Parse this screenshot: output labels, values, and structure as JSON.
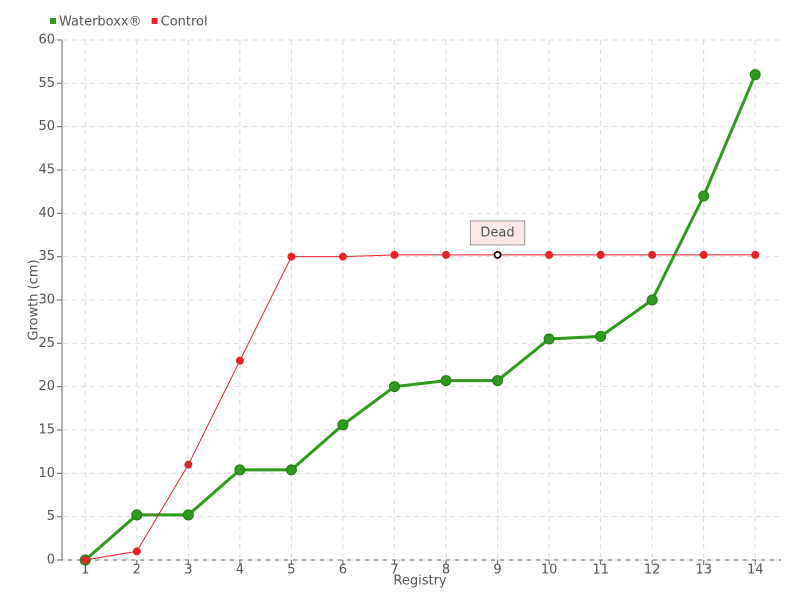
{
  "chart_data": {
    "type": "line",
    "categories": [
      "1",
      "2",
      "3",
      "4",
      "5",
      "6",
      "7",
      "8",
      "9",
      "10",
      "11",
      "12",
      "13",
      "14"
    ],
    "series": [
      {
        "name": "Waterboxx®",
        "color": "#2f9a1e",
        "values": [
          0,
          5.2,
          5.2,
          10.4,
          10.4,
          15.6,
          20,
          20.7,
          20.7,
          25.5,
          25.8,
          30,
          42,
          56
        ]
      },
      {
        "name": "Control",
        "color": "#e8202a",
        "values": [
          0,
          1,
          11,
          23,
          35,
          35,
          35.2,
          35.2,
          35.2,
          35.2,
          35.2,
          35.2,
          35.2,
          35.2
        ]
      }
    ],
    "ylim": [
      0,
      60
    ],
    "yticks": [
      0,
      5,
      10,
      15,
      20,
      25,
      30,
      35,
      40,
      45,
      50,
      55,
      60
    ],
    "x_label": "Registry",
    "y_label": "Growth (cm)",
    "grid": true,
    "legend": "top-left",
    "annotations": [
      {
        "text": "Dead",
        "category": "9",
        "series": "Control"
      }
    ]
  }
}
